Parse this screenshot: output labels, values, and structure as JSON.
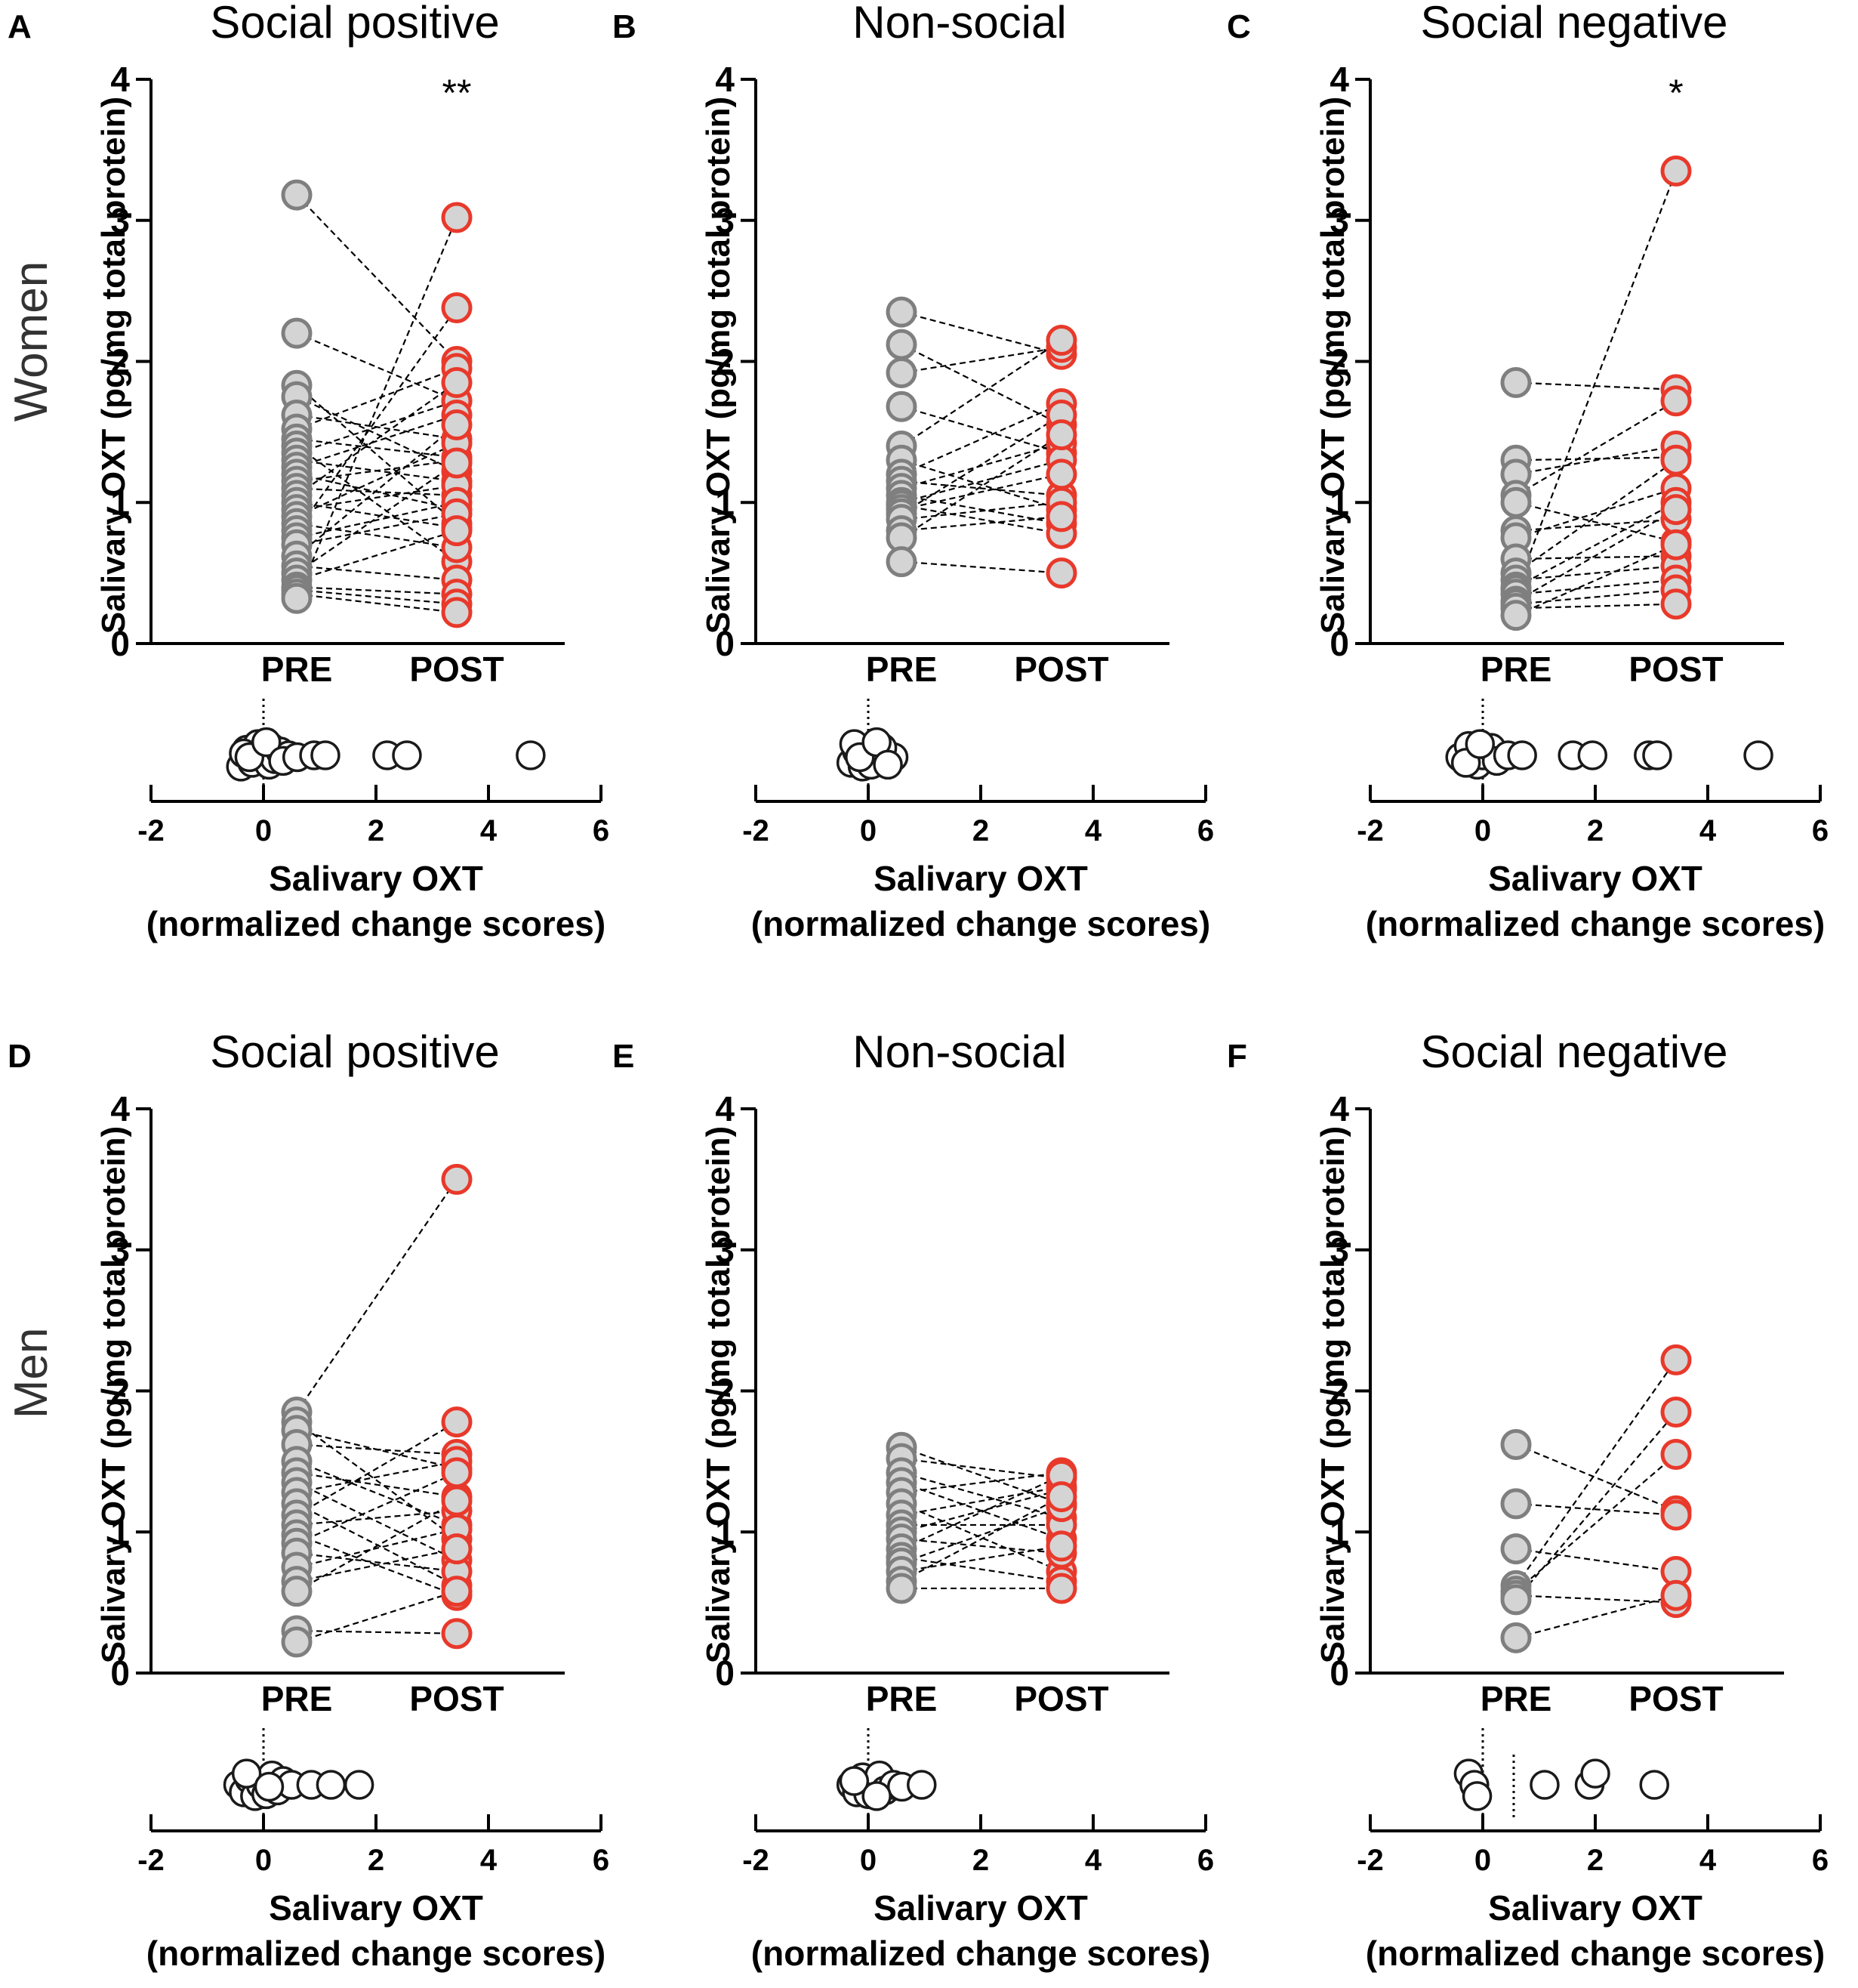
{
  "row_labels": [
    "Women",
    "Men"
  ],
  "chart_data": [
    {
      "type": "scatter",
      "panel": "A",
      "title": "Social positive",
      "row": "Women",
      "ylabel": "Salivary OXT (pg/mg total protein)",
      "yticks": [
        "0",
        "1",
        "2",
        "3",
        "4"
      ],
      "ylim": [
        0,
        4
      ],
      "categories": [
        "PRE",
        "POST"
      ],
      "significance": "**",
      "colors": {
        "pre": "#7f7f7f",
        "post": "#e8392b",
        "fill": "#d4d4d4"
      },
      "pairs": [
        [
          3.18,
          2.0
        ],
        [
          2.2,
          1.72
        ],
        [
          1.83,
          0.85
        ],
        [
          1.75,
          1.22
        ],
        [
          1.62,
          1.45
        ],
        [
          1.52,
          1.95
        ],
        [
          1.45,
          1.32
        ],
        [
          1.4,
          0.58
        ],
        [
          1.35,
          1.72
        ],
        [
          1.3,
          1.15
        ],
        [
          1.25,
          1.62
        ],
        [
          1.2,
          0.95
        ],
        [
          1.15,
          1.3
        ],
        [
          1.1,
          1.05
        ],
        [
          1.05,
          1.85
        ],
        [
          1.0,
          0.82
        ],
        [
          0.95,
          1.12
        ],
        [
          0.9,
          1.42
        ],
        [
          0.85,
          0.68
        ],
        [
          0.8,
          2.38
        ],
        [
          0.75,
          1.0
        ],
        [
          0.7,
          0.92
        ],
        [
          0.62,
          1.55
        ],
        [
          0.55,
          0.45
        ],
        [
          0.5,
          1.28
        ],
        [
          0.45,
          0.8
        ],
        [
          0.4,
          0.35
        ],
        [
          0.38,
          0.28
        ],
        [
          0.35,
          0.22
        ],
        [
          0.32,
          3.02
        ]
      ],
      "change": {
        "xlabel": [
          "Salivary OXT",
          "(normalized change scores)"
        ],
        "xticks": [
          "-2",
          "0",
          "2",
          "4",
          "6"
        ],
        "xlim": [
          -2,
          6
        ],
        "dashed_line_x": 0,
        "points": [
          [
            -0.4,
            0.3
          ],
          [
            -0.3,
            -0.15
          ],
          [
            -0.2,
            0.2
          ],
          [
            -0.1,
            -0.3
          ],
          [
            0.0,
            0.0
          ],
          [
            0.1,
            0.25
          ],
          [
            0.15,
            -0.2
          ],
          [
            0.2,
            0.1
          ],
          [
            0.3,
            -0.1
          ],
          [
            0.45,
            0.0
          ],
          [
            -0.35,
            -0.05
          ],
          [
            -0.25,
            0.05
          ],
          [
            0.05,
            -0.35
          ],
          [
            0.35,
            0.15
          ],
          [
            0.6,
            0.05
          ],
          [
            0.9,
            0.0
          ],
          [
            1.1,
            0.0
          ],
          [
            2.2,
            0.0
          ],
          [
            2.55,
            0.0
          ],
          [
            4.75,
            0.0
          ]
        ]
      }
    },
    {
      "type": "scatter",
      "panel": "B",
      "title": "Non-social",
      "row": "Women",
      "ylabel": "Salivary OXT (pg/mg total protein)",
      "yticks": [
        "0",
        "1",
        "2",
        "3",
        "4"
      ],
      "ylim": [
        0,
        4
      ],
      "categories": [
        "PRE",
        "POST"
      ],
      "significance": "",
      "colors": {
        "pre": "#7f7f7f",
        "post": "#e8392b",
        "fill": "#d4d4d4"
      },
      "pairs": [
        [
          2.35,
          2.05
        ],
        [
          2.12,
          1.55
        ],
        [
          1.92,
          2.1
        ],
        [
          1.68,
          1.35
        ],
        [
          1.4,
          2.15
        ],
        [
          1.3,
          0.95
        ],
        [
          1.2,
          1.7
        ],
        [
          1.15,
          1.05
        ],
        [
          1.1,
          1.42
        ],
        [
          1.05,
          0.85
        ],
        [
          1.0,
          1.3
        ],
        [
          0.98,
          0.78
        ],
        [
          0.95,
          1.2
        ],
        [
          0.92,
          1.62
        ],
        [
          0.88,
          1.0
        ],
        [
          0.8,
          0.9
        ],
        [
          0.75,
          1.48
        ],
        [
          0.58,
          0.5
        ]
      ],
      "change": {
        "xlabel": [
          "Salivary OXT",
          "(normalized change scores)"
        ],
        "xticks": [
          "-2",
          "0",
          "2",
          "4",
          "6"
        ],
        "xlim": [
          -2,
          6
        ],
        "dashed_line_x": 0,
        "points": [
          [
            -0.3,
            0.2
          ],
          [
            -0.2,
            -0.1
          ],
          [
            -0.1,
            0.3
          ],
          [
            0.0,
            0.0
          ],
          [
            0.1,
            -0.25
          ],
          [
            0.2,
            0.15
          ],
          [
            0.3,
            -0.05
          ],
          [
            0.45,
            0.05
          ],
          [
            -0.25,
            -0.3
          ],
          [
            0.05,
            0.25
          ],
          [
            0.25,
            -0.2
          ],
          [
            -0.15,
            0.05
          ],
          [
            0.15,
            -0.35
          ],
          [
            0.35,
            0.25
          ]
        ]
      }
    },
    {
      "type": "scatter",
      "panel": "C",
      "title": "Social negative",
      "row": "Women",
      "ylabel": "Salivary OXT (pg/mg total protein)",
      "yticks": [
        "0",
        "1",
        "2",
        "3",
        "4"
      ],
      "ylim": [
        0,
        4
      ],
      "categories": [
        "PRE",
        "POST"
      ],
      "significance": "*",
      "colors": {
        "pre": "#7f7f7f",
        "post": "#e8392b",
        "fill": "#d4d4d4"
      },
      "pairs": [
        [
          1.85,
          1.8
        ],
        [
          1.3,
          1.32
        ],
        [
          1.2,
          1.4
        ],
        [
          1.05,
          1.72
        ],
        [
          1.0,
          0.72
        ],
        [
          0.8,
          0.88
        ],
        [
          0.75,
          1.1
        ],
        [
          0.6,
          0.62
        ],
        [
          0.5,
          1.3
        ],
        [
          0.45,
          0.55
        ],
        [
          0.4,
          1.0
        ],
        [
          0.38,
          3.35
        ],
        [
          0.35,
          0.45
        ],
        [
          0.3,
          0.95
        ],
        [
          0.28,
          0.38
        ],
        [
          0.25,
          0.28
        ],
        [
          0.2,
          0.7
        ]
      ],
      "change": {
        "xlabel": [
          "Salivary OXT",
          "(normalized change scores)"
        ],
        "xticks": [
          "-2",
          "0",
          "2",
          "4",
          "6"
        ],
        "xlim": [
          -2,
          6
        ],
        "dashed_line_x": 0,
        "points": [
          [
            -0.4,
            0.05
          ],
          [
            -0.25,
            -0.25
          ],
          [
            -0.1,
            0.25
          ],
          [
            0.0,
            0.0
          ],
          [
            0.15,
            -0.2
          ],
          [
            0.25,
            0.15
          ],
          [
            0.45,
            0.0
          ],
          [
            0.7,
            0.0
          ],
          [
            -0.3,
            0.2
          ],
          [
            -0.05,
            -0.3
          ],
          [
            1.6,
            0.0
          ],
          [
            1.95,
            0.0
          ],
          [
            2.95,
            0.0
          ],
          [
            3.1,
            0.0
          ],
          [
            4.9,
            0.0
          ]
        ]
      }
    },
    {
      "type": "scatter",
      "panel": "D",
      "title": "Social positive",
      "row": "Men",
      "ylabel": "Salivary OXT (pg/mg total protein)",
      "yticks": [
        "0",
        "1",
        "2",
        "3",
        "4"
      ],
      "ylim": [
        0,
        4
      ],
      "categories": [
        "PRE",
        "POST"
      ],
      "significance": "",
      "colors": {
        "pre": "#7f7f7f",
        "post": "#e8392b",
        "fill": "#d4d4d4"
      },
      "pairs": [
        [
          1.85,
          3.5
        ],
        [
          1.78,
          0.95
        ],
        [
          1.72,
          1.45
        ],
        [
          1.62,
          1.55
        ],
        [
          1.5,
          1.05
        ],
        [
          1.42,
          1.25
        ],
        [
          1.35,
          0.8
        ],
        [
          1.28,
          1.5
        ],
        [
          1.2,
          0.62
        ],
        [
          1.12,
          1.78
        ],
        [
          1.05,
          1.15
        ],
        [
          0.98,
          0.55
        ],
        [
          0.92,
          1.42
        ],
        [
          0.85,
          0.72
        ],
        [
          0.75,
          1.02
        ],
        [
          0.65,
          0.88
        ],
        [
          0.58,
          1.22
        ],
        [
          0.3,
          0.28
        ],
        [
          0.22,
          0.58
        ]
      ],
      "change": {
        "xlabel": [
          "Salivary OXT",
          "(normalized change scores)"
        ],
        "xticks": [
          "-2",
          "0",
          "2",
          "4",
          "6"
        ],
        "xlim": [
          -2,
          6
        ],
        "dashed_line_x": 0,
        "points": [
          [
            -0.45,
            0.0
          ],
          [
            -0.35,
            0.2
          ],
          [
            -0.25,
            -0.15
          ],
          [
            -0.15,
            0.3
          ],
          [
            -0.05,
            0.0
          ],
          [
            0.05,
            0.25
          ],
          [
            0.15,
            -0.25
          ],
          [
            0.25,
            0.15
          ],
          [
            0.35,
            -0.1
          ],
          [
            0.5,
            0.0
          ],
          [
            -0.3,
            -0.3
          ],
          [
            0.1,
            0.05
          ],
          [
            0.85,
            0.0
          ],
          [
            1.2,
            0.0
          ],
          [
            1.7,
            0.0
          ]
        ]
      }
    },
    {
      "type": "scatter",
      "panel": "E",
      "title": "Non-social",
      "row": "Men",
      "ylabel": "Salivary OXT (pg/mg total protein)",
      "yticks": [
        "0",
        "1",
        "2",
        "3",
        "4"
      ],
      "ylim": [
        0,
        4
      ],
      "categories": [
        "PRE",
        "POST"
      ],
      "significance": "",
      "colors": {
        "pre": "#7f7f7f",
        "post": "#e8392b",
        "fill": "#d4d4d4"
      },
      "pairs": [
        [
          1.6,
          1.2
        ],
        [
          1.52,
          1.38
        ],
        [
          1.42,
          1.1
        ],
        [
          1.35,
          0.95
        ],
        [
          1.28,
          1.42
        ],
        [
          1.2,
          0.72
        ],
        [
          1.12,
          1.32
        ],
        [
          1.05,
          1.05
        ],
        [
          1.0,
          1.3
        ],
        [
          0.95,
          0.85
        ],
        [
          0.88,
          1.4
        ],
        [
          0.82,
          0.65
        ],
        [
          0.78,
          1.18
        ],
        [
          0.72,
          0.9
        ],
        [
          0.65,
          1.25
        ],
        [
          0.6,
          0.6
        ]
      ],
      "change": {
        "xlabel": [
          "Salivary OXT",
          "(normalized change scores)"
        ],
        "xticks": [
          "-2",
          "0",
          "2",
          "4",
          "6"
        ],
        "xlim": [
          -2,
          6
        ],
        "dashed_line_x": 0,
        "points": [
          [
            -0.3,
            0.0
          ],
          [
            -0.2,
            0.2
          ],
          [
            -0.1,
            -0.2
          ],
          [
            0.0,
            0.25
          ],
          [
            0.1,
            0.0
          ],
          [
            0.2,
            -0.25
          ],
          [
            0.3,
            0.15
          ],
          [
            0.45,
            0.0
          ],
          [
            0.6,
            0.05
          ],
          [
            0.95,
            0.0
          ],
          [
            -0.25,
            -0.1
          ],
          [
            0.15,
            0.3
          ]
        ]
      }
    },
    {
      "type": "scatter",
      "panel": "F",
      "title": "Social negative",
      "row": "Men",
      "ylabel": "Salivary OXT (pg/mg total protein)",
      "yticks": [
        "0",
        "1",
        "2",
        "3",
        "4"
      ],
      "ylim": [
        0,
        4
      ],
      "categories": [
        "PRE",
        "POST"
      ],
      "significance": "",
      "colors": {
        "pre": "#7f7f7f",
        "post": "#e8392b",
        "fill": "#d4d4d4"
      },
      "pairs": [
        [
          1.62,
          1.15
        ],
        [
          1.2,
          1.12
        ],
        [
          0.88,
          0.72
        ],
        [
          0.62,
          2.22
        ],
        [
          0.58,
          1.55
        ],
        [
          0.55,
          0.5
        ],
        [
          0.52,
          1.85
        ],
        [
          0.25,
          0.55
        ]
      ],
      "change": {
        "xlabel": [
          "Salivary OXT",
          "(normalized change scores)"
        ],
        "xticks": [
          "-2",
          "0",
          "2",
          "4",
          "6"
        ],
        "xlim": [
          -2,
          6
        ],
        "dashed_line_x": 0,
        "mean_line_x": 0.55,
        "points": [
          [
            -0.25,
            -0.3
          ],
          [
            -0.15,
            0.0
          ],
          [
            -0.1,
            0.3
          ],
          [
            1.1,
            0.0
          ],
          [
            1.9,
            0.0
          ],
          [
            2.0,
            -0.3
          ],
          [
            3.05,
            0.0
          ]
        ]
      }
    }
  ]
}
